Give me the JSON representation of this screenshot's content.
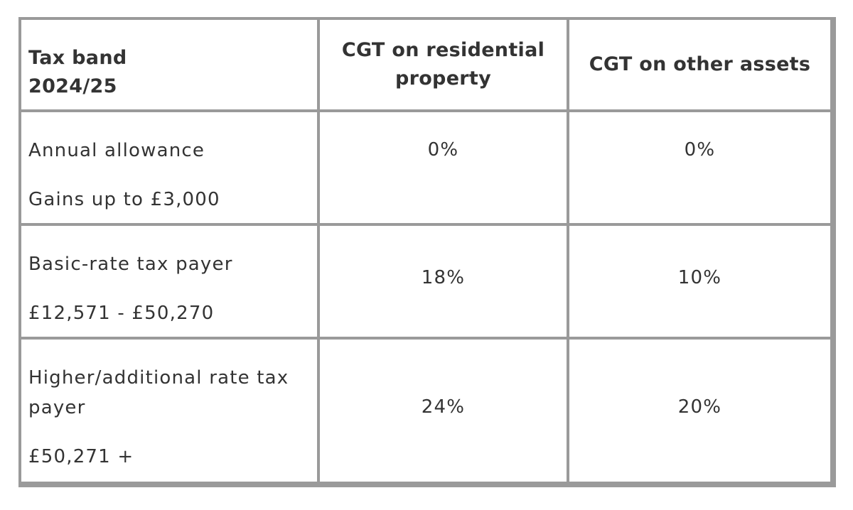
{
  "table": {
    "headers": {
      "band_line1": "Tax band",
      "band_line2": "2024/25",
      "residential_line1": "CGT on residential",
      "residential_line2": "property",
      "other": "CGT on other assets"
    },
    "rows": [
      {
        "label_line1": "Annual allowance",
        "label_line2": "Gains up to £3,000",
        "residential": "0%",
        "other": "0%"
      },
      {
        "label_line1": "Basic-rate tax payer",
        "label_line2": "£12,571 - £50,270",
        "residential": "18%",
        "other": "10%"
      },
      {
        "label_line1": "Higher/additional rate tax",
        "label_line1b": "payer",
        "label_line2": "£50,271 +",
        "residential": "24%",
        "other": "20%"
      }
    ]
  }
}
